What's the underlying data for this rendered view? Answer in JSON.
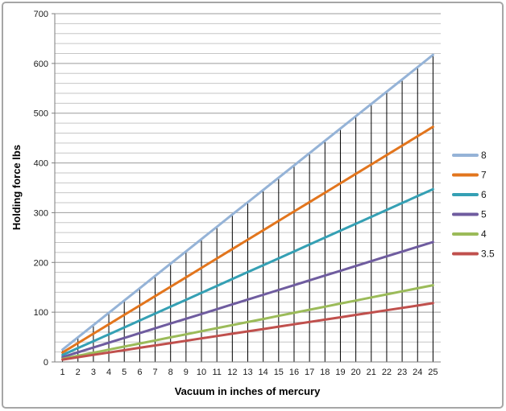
{
  "window": {
    "background": "#ffffff",
    "frame_border_color": "#a6a6a6"
  },
  "chart_data": {
    "type": "line",
    "title": "",
    "xlabel": "Vacuum in inches of mercury",
    "ylabel": "Holding force lbs",
    "x": [
      1,
      2,
      3,
      4,
      5,
      6,
      7,
      8,
      9,
      10,
      11,
      12,
      13,
      14,
      15,
      16,
      17,
      18,
      19,
      20,
      21,
      22,
      23,
      24,
      25
    ],
    "series": [
      {
        "name": "8",
        "color": "#95B3D7",
        "values": [
          24.7,
          49.4,
          74.1,
          98.8,
          123.4,
          148.1,
          172.8,
          197.5,
          222.2,
          246.9,
          271.6,
          296.3,
          320.9,
          345.6,
          370.3,
          395.0,
          419.7,
          444.4,
          469.1,
          493.8,
          518.5,
          543.1,
          567.8,
          592.5,
          617.2
        ]
      },
      {
        "name": "7",
        "color": "#E2751D",
        "values": [
          18.9,
          37.8,
          56.7,
          75.6,
          94.5,
          113.4,
          132.3,
          151.2,
          170.1,
          189.0,
          207.9,
          226.8,
          245.7,
          264.6,
          283.5,
          302.4,
          321.3,
          340.2,
          359.1,
          378.0,
          396.9,
          415.8,
          434.7,
          453.6,
          472.5
        ]
      },
      {
        "name": "6",
        "color": "#35A0B4",
        "values": [
          13.9,
          27.8,
          41.7,
          55.5,
          69.4,
          83.3,
          97.2,
          111.1,
          125.0,
          138.9,
          152.8,
          166.6,
          180.5,
          194.4,
          208.3,
          222.2,
          236.1,
          250.0,
          263.9,
          277.7,
          291.6,
          305.5,
          319.4,
          333.3,
          347.2
        ]
      },
      {
        "name": "5",
        "color": "#6F5C9F",
        "values": [
          9.6,
          19.3,
          28.9,
          38.6,
          48.2,
          57.9,
          67.5,
          77.2,
          86.8,
          96.4,
          106.1,
          115.7,
          125.4,
          135.0,
          144.7,
          154.3,
          163.9,
          173.6,
          183.2,
          192.9,
          202.5,
          212.2,
          221.8,
          231.5,
          241.1
        ]
      },
      {
        "name": "4",
        "color": "#9BBB59",
        "values": [
          6.2,
          12.3,
          18.5,
          24.7,
          30.9,
          37.0,
          43.2,
          49.4,
          55.5,
          61.7,
          67.9,
          74.1,
          80.2,
          86.4,
          92.6,
          98.8,
          104.9,
          111.1,
          117.3,
          123.4,
          129.6,
          135.8,
          142.0,
          148.1,
          154.3
        ]
      },
      {
        "name": "3.5",
        "color": "#C0504D",
        "values": [
          4.7,
          9.5,
          14.2,
          18.9,
          23.6,
          28.4,
          33.1,
          37.8,
          42.5,
          47.3,
          52.0,
          56.7,
          61.4,
          66.2,
          70.9,
          75.6,
          80.3,
          85.1,
          89.8,
          94.5,
          99.2,
          104.0,
          108.7,
          113.4,
          118.1
        ]
      }
    ],
    "ylim": [
      0,
      700
    ],
    "y_major_ticks": [
      0,
      100,
      200,
      300,
      400,
      500,
      600,
      700
    ],
    "y_minor_step": 20,
    "grid": true,
    "drop_lines": true,
    "legend_position": "right",
    "colors": {
      "gridline_minor": "#c6c6c6",
      "gridline_major": "#9b9b9b",
      "axis_line": "#7f7f7f",
      "drop_line": "#000000",
      "tick_text": "#1a1a1a"
    }
  }
}
